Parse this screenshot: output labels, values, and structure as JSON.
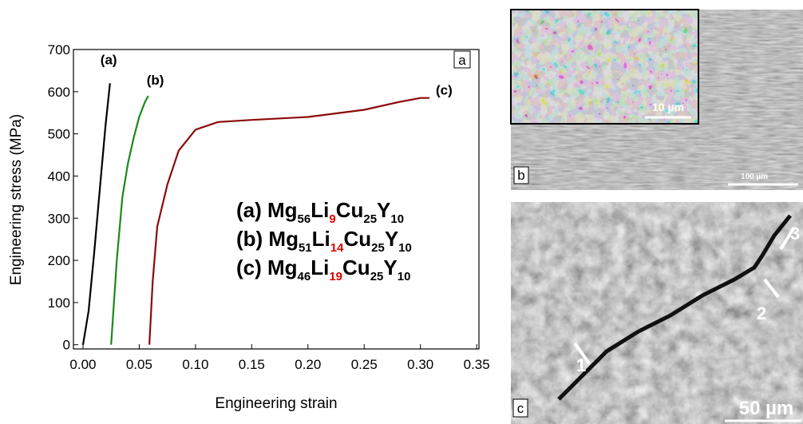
{
  "chart_data": {
    "type": "line",
    "panel_label": "a",
    "x_label": "Engineering strain",
    "y_label": "Engineering stress (MPa)",
    "xlim": [
      -0.0085,
      0.352
    ],
    "ylim": [
      -10,
      700
    ],
    "xticks": [
      {
        "value": 0,
        "label": "0.00"
      },
      {
        "value": 0.05,
        "label": "0.05"
      },
      {
        "value": 0.1,
        "label": "0.10"
      },
      {
        "value": 0.15,
        "label": "0.15"
      },
      {
        "value": 0.2,
        "label": "0.20"
      },
      {
        "value": 0.25,
        "label": "0.25"
      },
      {
        "value": 0.3,
        "label": "0.30"
      },
      {
        "value": 0.35,
        "label": "0.35"
      }
    ],
    "yticks": [
      0,
      100,
      200,
      300,
      400,
      500,
      600,
      700
    ],
    "series": [
      {
        "name": "(a)",
        "color": "#000000",
        "x": [
          0,
          0.005,
          0.01,
          0.015,
          0.02,
          0.024
        ],
        "values": [
          0,
          80,
          220,
          370,
          520,
          620
        ]
      },
      {
        "name": "(b)",
        "color": "#1a8a1a",
        "x": [
          0.025,
          0.03,
          0.035,
          0.04,
          0.045,
          0.05,
          0.055,
          0.058
        ],
        "values": [
          0,
          200,
          350,
          430,
          490,
          540,
          575,
          590
        ]
      },
      {
        "name": "(c)",
        "color": "#8b0a0a",
        "x": [
          0.059,
          0.062,
          0.066,
          0.075,
          0.085,
          0.1,
          0.12,
          0.15,
          0.2,
          0.25,
          0.28,
          0.3,
          0.308
        ],
        "values": [
          0,
          150,
          280,
          380,
          460,
          510,
          528,
          533,
          540,
          557,
          575,
          585,
          585
        ]
      }
    ],
    "legend_formulas": [
      [
        "(a) Mg",
        "56",
        "Li",
        "9",
        "Cu",
        "25",
        "Y",
        "10"
      ],
      [
        "(b) Mg",
        "51",
        "Li",
        "14",
        "Cu",
        "25",
        "Y",
        "10"
      ],
      [
        "(c) Mg",
        "46",
        "Li",
        "19",
        "Cu",
        "25",
        "Y",
        "10"
      ]
    ],
    "highlight_color": "#e00000"
  },
  "panels": {
    "b": {
      "label": "b",
      "inset_scale": "10 µm",
      "scale": "100 µm"
    },
    "c": {
      "label": "c",
      "scale": "50 µm",
      "markers": [
        "1",
        "2",
        "3"
      ]
    }
  }
}
